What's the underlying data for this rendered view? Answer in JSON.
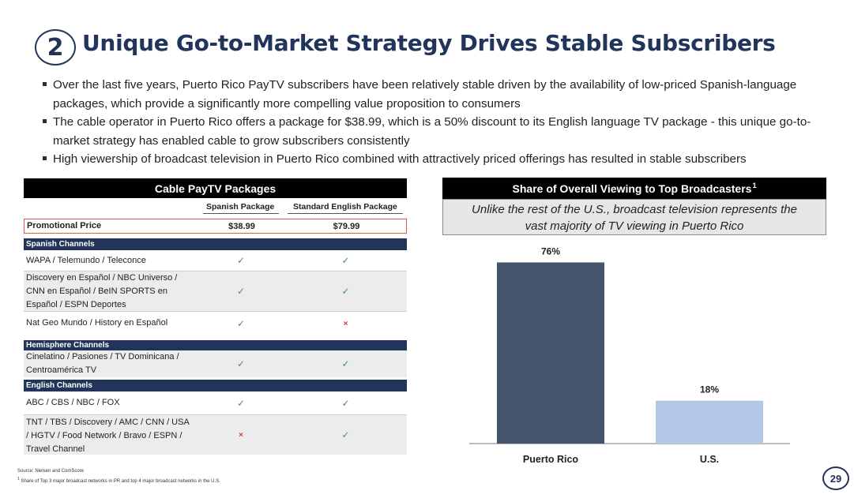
{
  "title": {
    "number": "2",
    "text": "Unique Go-to-Market Strategy Drives Stable Subscribers"
  },
  "bullets": [
    "Over the last five years, Puerto Rico PayTV subscribers have been relatively stable driven by the availability of low-priced Spanish-language packages, which provide a significantly more compelling value proposition to consumers",
    "The cable operator in Puerto Rico offers a package for $38.99, which is a 50% discount to its English language TV package - this unique go-to-market strategy has enabled cable to grow subscribers consistently",
    "High viewership of broadcast television in Puerto Rico combined with attractively priced offerings has resulted in stable subscribers"
  ],
  "table": {
    "title": "Cable PayTV Packages",
    "col1": "Spanish Package",
    "col2": "Standard English Package",
    "promo_label": "Promotional Price",
    "promo_col1": "$38.99",
    "promo_col2": "$79.99",
    "check": "✓",
    "cross": "×",
    "sections": {
      "spanish": "Spanish Channels",
      "hemisphere": "Hemisphere Channels",
      "english": "English Channels"
    },
    "rows": {
      "wapa": "WAPA / Telemundo / Teleconce",
      "discovery": [
        "Discovery en Español / NBC Universo /",
        "CNN en Español / BeIN SPORTS en",
        "Español / ESPN Deportes"
      ],
      "natgeo": "Nat Geo Mundo / History en Español",
      "cinelatino": [
        "Cinelatino / Pasiones / TV Dominicana /",
        "Centroamérica TV"
      ],
      "abc": "ABC / CBS / NBC / FOX",
      "tnt": [
        "TNT / TBS / Discovery / AMC / CNN / USA",
        "/ HGTV / Food Network / Bravo / ESPN /",
        "Travel Channel"
      ]
    }
  },
  "right_panel": {
    "header": "Share of Overall Viewing to Top Broadcasters",
    "header_sup": "1",
    "subtitle_line1": "Unlike the rest of the U.S., broadcast television represents the",
    "subtitle_line2": "vast majority of TV viewing in Puerto Rico"
  },
  "chart_data": {
    "type": "bar",
    "categories": [
      "Puerto Rico",
      "U.S."
    ],
    "values": [
      76,
      18
    ],
    "value_labels": [
      "76%",
      "18%"
    ],
    "colors": [
      "#44546a",
      "#b4c7e7"
    ],
    "ylim": [
      0,
      100
    ],
    "title": "Share of Overall Viewing to Top Broadcasters"
  },
  "footer": {
    "source": "Source: Nielsen and ComScore",
    "footnote_sup": "1",
    "footnote": "Share of Top 3 major broadcast networks in PR and top 4 major broadcast networks in the U.S.",
    "page": "29"
  },
  "colors": {
    "navy": "#22345a",
    "check": "#3e9b44",
    "cross": "#e23b30"
  }
}
